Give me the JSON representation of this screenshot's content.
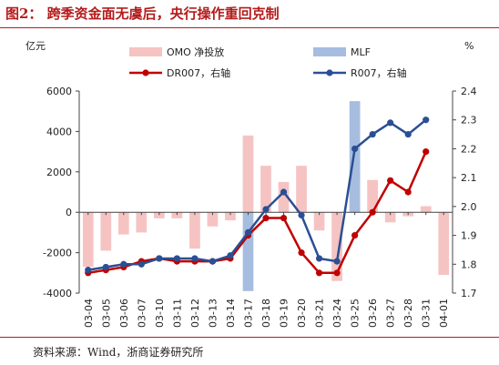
{
  "figure": {
    "title": "图2： 跨季资金面无虞后，央行操作重回克制",
    "source": "资料来源：Wind，浙商证券研究所"
  },
  "colors": {
    "omo": "#f6c3c3",
    "mlf": "#a6bddf",
    "dr007": "#c00000",
    "r007": "#2a4f93",
    "title_red": "#b51b1b"
  },
  "chart_data": {
    "type": "bar",
    "categories": [
      "03-04",
      "03-05",
      "03-06",
      "03-07",
      "03-10",
      "03-11",
      "03-12",
      "03-13",
      "03-14",
      "03-17",
      "03-18",
      "03-19",
      "03-20",
      "03-21",
      "03-24",
      "03-25",
      "03-26",
      "03-27",
      "03-28",
      "03-31",
      "04-01"
    ],
    "left_axis": {
      "label": "亿元",
      "ylim": [
        -4000,
        6000
      ],
      "ticks": [
        -4000,
        -2000,
        0,
        2000,
        4000,
        6000
      ]
    },
    "right_axis": {
      "label": "%",
      "ylim": [
        1.7,
        2.4
      ],
      "ticks": [
        1.7,
        1.8,
        1.9,
        2.0,
        2.1,
        2.2,
        2.3,
        2.4
      ]
    },
    "series": [
      {
        "name": "OMO 净投放",
        "type": "bar",
        "axis": "left",
        "values": [
          -2700,
          -1900,
          -1100,
          -1000,
          -300,
          -300,
          -1800,
          -700,
          -400,
          3800,
          2300,
          1500,
          2300,
          -900,
          -3400,
          1000,
          1600,
          -500,
          -200,
          300,
          -3100
        ]
      },
      {
        "name": "MLF",
        "type": "bar",
        "axis": "left",
        "values": [
          0,
          0,
          0,
          0,
          0,
          0,
          0,
          0,
          0,
          -3900,
          0,
          0,
          0,
          0,
          0,
          5500,
          0,
          0,
          0,
          0,
          0
        ]
      },
      {
        "name": "DR007，右轴",
        "type": "line",
        "axis": "right",
        "values": [
          1.77,
          1.78,
          1.79,
          1.81,
          1.82,
          1.81,
          1.81,
          1.81,
          1.82,
          1.9,
          1.96,
          1.96,
          1.84,
          1.77,
          1.77,
          1.9,
          1.98,
          2.09,
          2.05,
          2.19,
          null
        ]
      },
      {
        "name": "R007，右轴",
        "type": "line",
        "axis": "right",
        "values": [
          1.78,
          1.79,
          1.8,
          1.8,
          1.82,
          1.82,
          1.82,
          1.81,
          1.83,
          1.91,
          1.99,
          2.05,
          1.97,
          1.82,
          1.81,
          2.2,
          2.25,
          2.29,
          2.25,
          2.3,
          null
        ]
      }
    ],
    "legend_position": "top",
    "grid": false
  }
}
